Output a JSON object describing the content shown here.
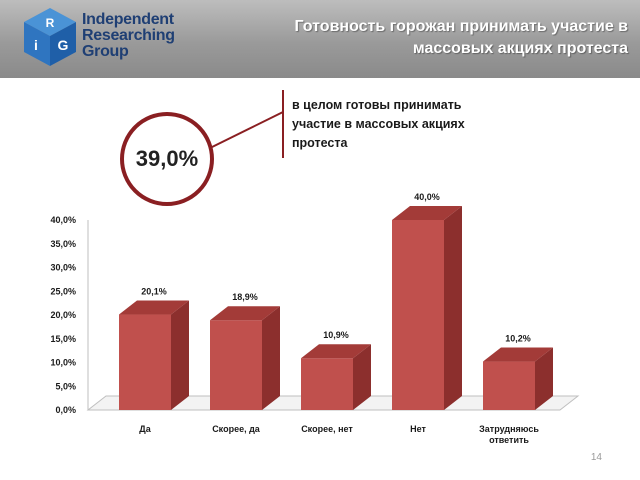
{
  "header": {
    "logo_letters": [
      "R",
      "i",
      "G"
    ],
    "logo_lines": [
      "Independent",
      "Researching",
      "Group"
    ],
    "title": "Готовность горожан принимать участие в массовых акциях протеста"
  },
  "callout": {
    "value": "39,0%",
    "text": "в целом готовы принимать участие в массовых акциях протеста"
  },
  "chart_data": {
    "type": "bar",
    "categories": [
      "Да",
      "Скорее, да",
      "Скорее, нет",
      "Нет",
      "Затрудняюсь ответить"
    ],
    "values": [
      20.1,
      18.9,
      10.9,
      40.0,
      10.2
    ],
    "value_labels": [
      "20,1%",
      "18,9%",
      "10,9%",
      "40,0%",
      "10,2%"
    ],
    "yticks": [
      "0,0%",
      "5,0%",
      "10,0%",
      "15,0%",
      "20,0%",
      "25,0%",
      "30,0%",
      "35,0%",
      "40,0%"
    ],
    "ylim": [
      0,
      40
    ],
    "grid": false,
    "legend": "none",
    "colors": {
      "bar_front": "#c0504d",
      "bar_side": "#8c2f2d",
      "bar_top": "#a33b38"
    }
  },
  "colors": {
    "brand_blue": "#1f3f74",
    "accent_red": "#8a1f22"
  },
  "footer": {
    "page": "14"
  }
}
